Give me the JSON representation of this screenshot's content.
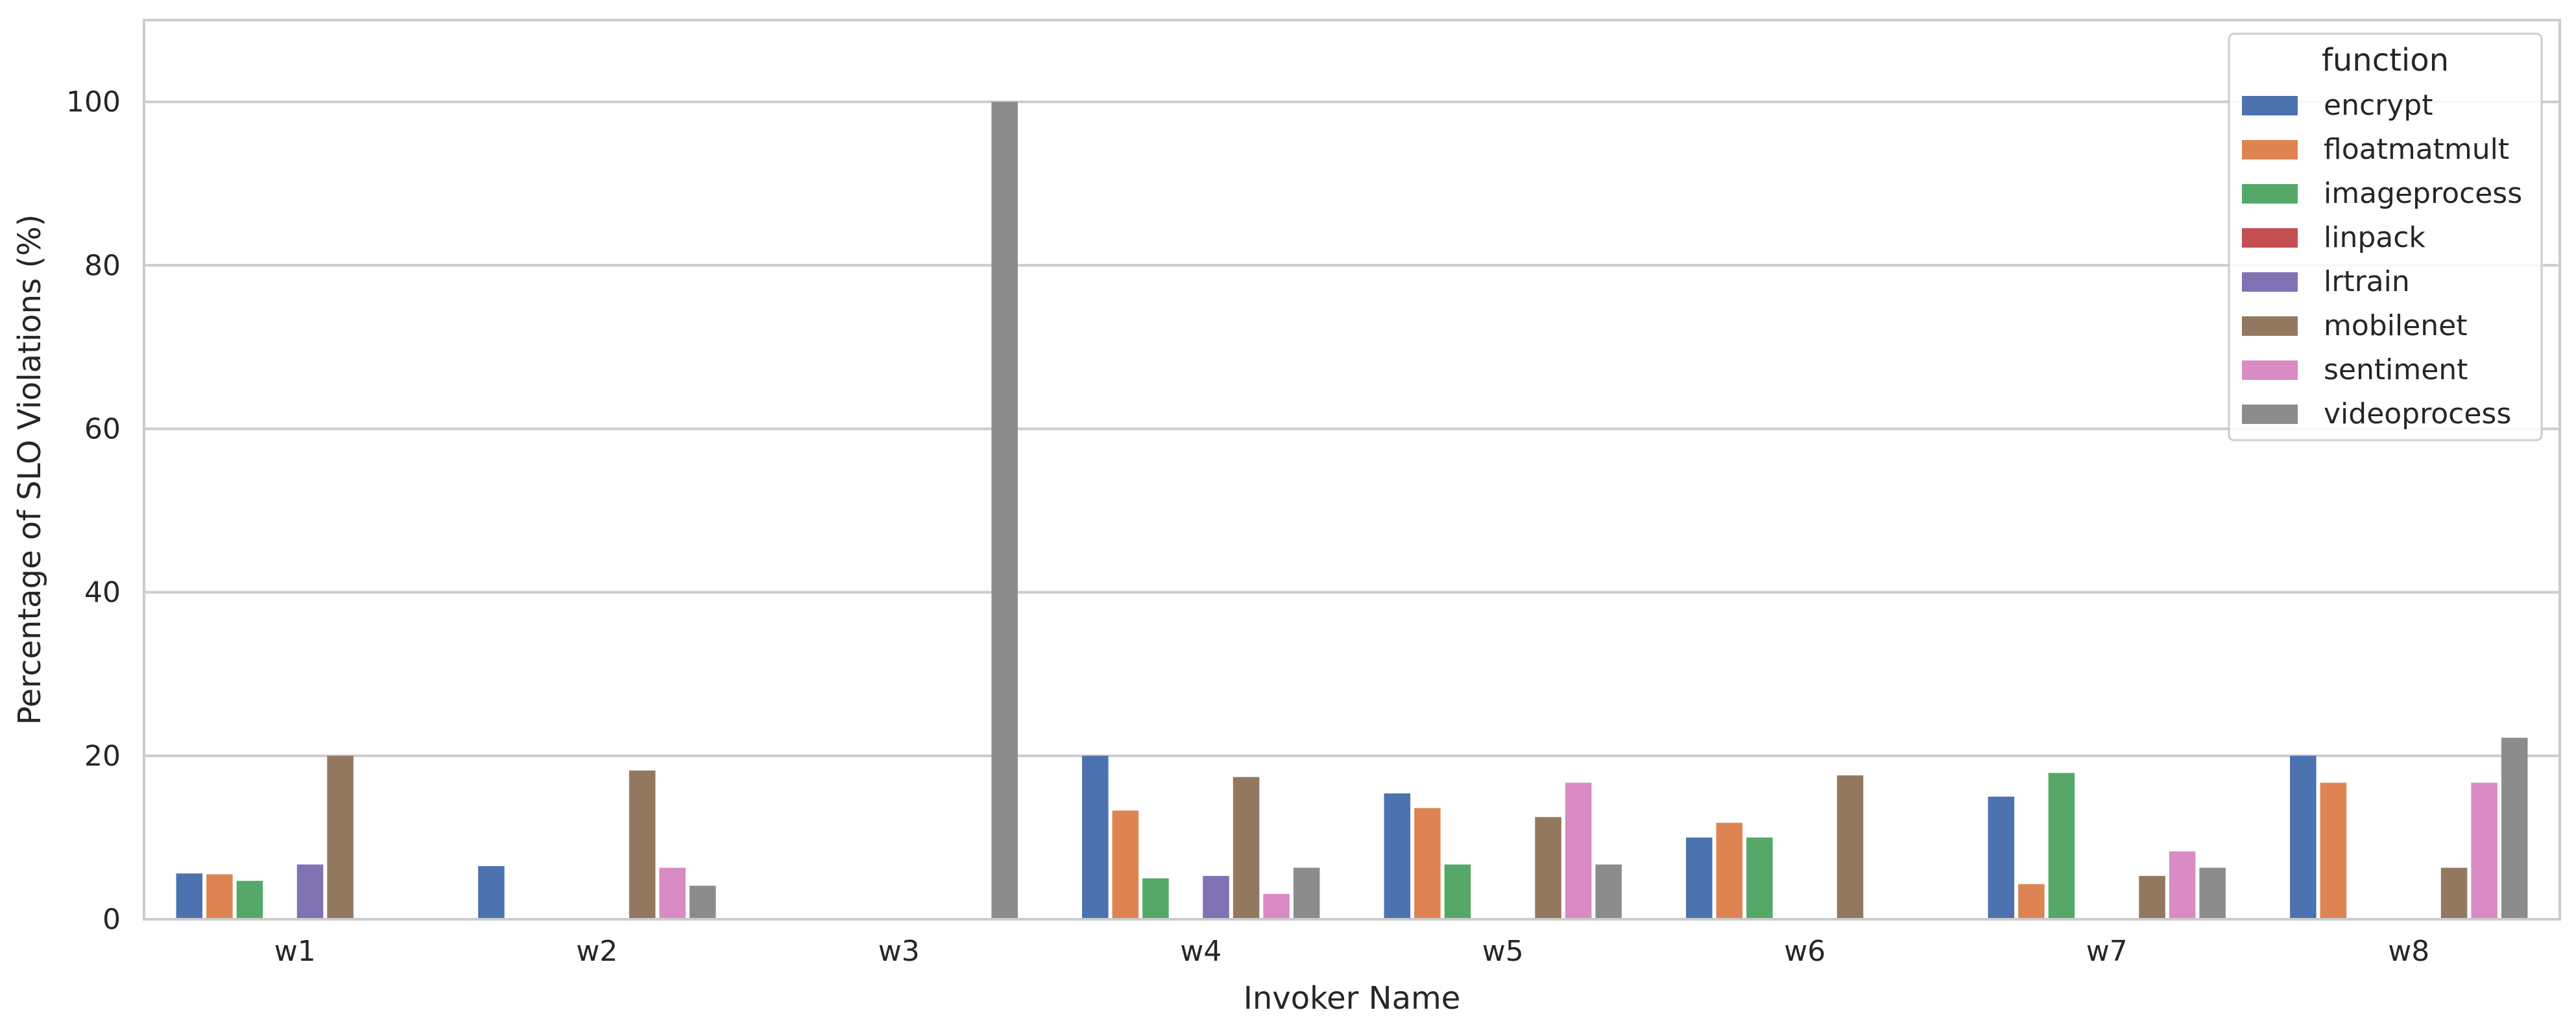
{
  "chart_data": {
    "type": "bar",
    "xlabel": "Invoker Name",
    "ylabel": "Percentage of SLO Violations (%)",
    "ylim": [
      0,
      110
    ],
    "yticks": [
      0,
      20,
      40,
      60,
      80,
      100
    ],
    "grid": true,
    "categories": [
      "w1",
      "w2",
      "w3",
      "w4",
      "w5",
      "w6",
      "w7",
      "w8"
    ],
    "legend": {
      "title": "function",
      "placement": "top-right"
    },
    "series": [
      {
        "name": "encrypt",
        "color": "#4c72b0",
        "values": [
          5.6,
          6.5,
          0,
          20.0,
          15.4,
          10.0,
          15.0,
          20.0
        ]
      },
      {
        "name": "floatmatmult",
        "color": "#dd8452",
        "values": [
          5.5,
          0,
          0,
          13.3,
          13.6,
          11.8,
          4.3,
          16.7
        ]
      },
      {
        "name": "imageprocess",
        "color": "#55a868",
        "values": [
          4.7,
          0,
          0,
          5.0,
          6.7,
          10.0,
          17.9,
          0
        ]
      },
      {
        "name": "linpack",
        "color": "#c44e52",
        "values": [
          0,
          0,
          0,
          0,
          0,
          0,
          0,
          0
        ]
      },
      {
        "name": "lrtrain",
        "color": "#8172b3",
        "values": [
          6.7,
          0,
          0,
          5.3,
          0,
          0,
          0,
          0
        ]
      },
      {
        "name": "mobilenet",
        "color": "#937860",
        "values": [
          20.0,
          18.2,
          0,
          17.4,
          12.5,
          17.6,
          5.3,
          6.3
        ]
      },
      {
        "name": "sentiment",
        "color": "#da8bc3",
        "values": [
          0,
          6.3,
          0,
          3.1,
          16.7,
          0,
          8.3,
          16.7
        ]
      },
      {
        "name": "videoprocess",
        "color": "#8c8c8c",
        "values": [
          0,
          4.1,
          100.0,
          6.3,
          6.7,
          0,
          6.3,
          22.2
        ]
      }
    ]
  }
}
